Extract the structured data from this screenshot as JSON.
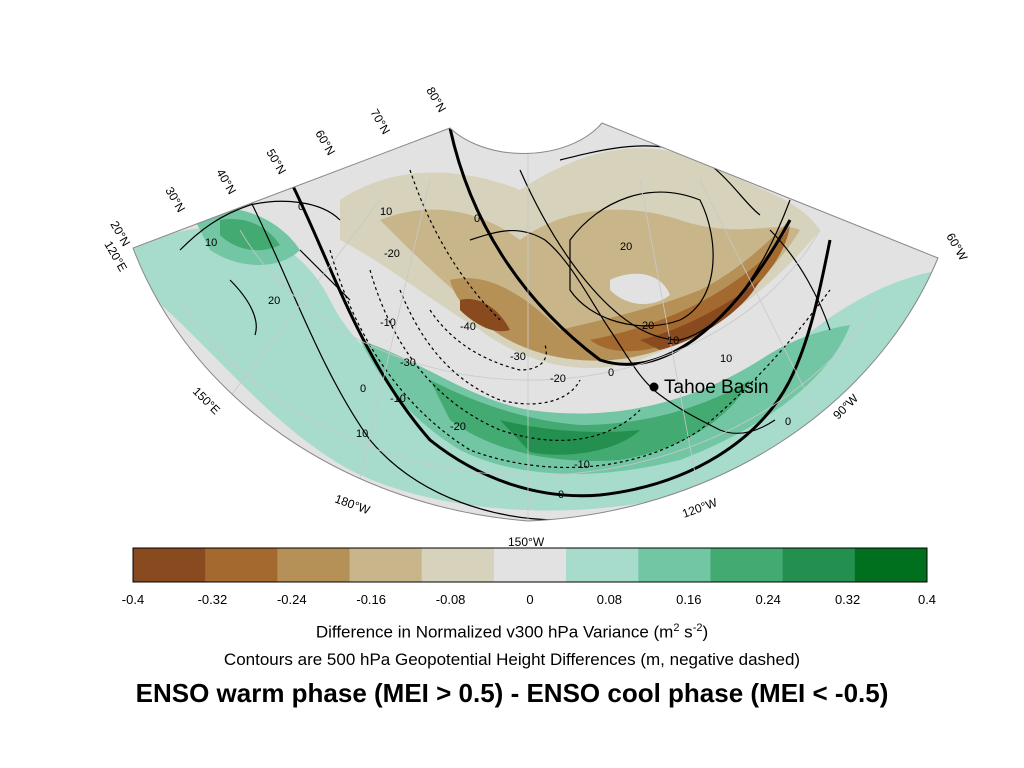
{
  "map": {
    "lat_labels": [
      "20°N",
      "30°N",
      "40°N",
      "50°N",
      "60°N",
      "70°N",
      "80°N"
    ],
    "lon_labels": [
      "120°E",
      "150°E",
      "180°W",
      "150°W",
      "120°W",
      "90°W",
      "60°W"
    ],
    "marker_label": "Tahoe Basin",
    "contour_labels": [
      "10",
      "0",
      "20",
      "-10",
      "-20",
      "-30",
      "-40",
      "10",
      "0",
      "20",
      "-10",
      "-20",
      "-30",
      "10",
      "0",
      "0",
      "-10",
      "10",
      "20",
      "-20",
      "10",
      "0",
      "0"
    ]
  },
  "colorbar": {
    "ticks": [
      "-0.4",
      "-0.32",
      "-0.24",
      "-0.16",
      "-0.08",
      "0",
      "0.08",
      "0.16",
      "0.24",
      "0.32",
      "0.4"
    ],
    "colors": [
      "#8a4a1f",
      "#a4692f",
      "#b69157",
      "#c8b68a",
      "#d6d2bb",
      "#e2e2e2",
      "#a7dbcc",
      "#73c6a4",
      "#43aa72",
      "#23904f",
      "#006f1e"
    ]
  },
  "caption": {
    "line1_main": "Difference in Normalized v300 hPa Variance (m",
    "line1_sup1": "2",
    "line1_mid": " s",
    "line1_sup2": "-2",
    "line1_end": ")",
    "line2": "Contours are 500 hPa Geopotential Height Differences (m, negative dashed)"
  },
  "title": "ENSO warm phase (MEI > 0.5) - ENSO cool phase (MEI < -0.5)"
}
